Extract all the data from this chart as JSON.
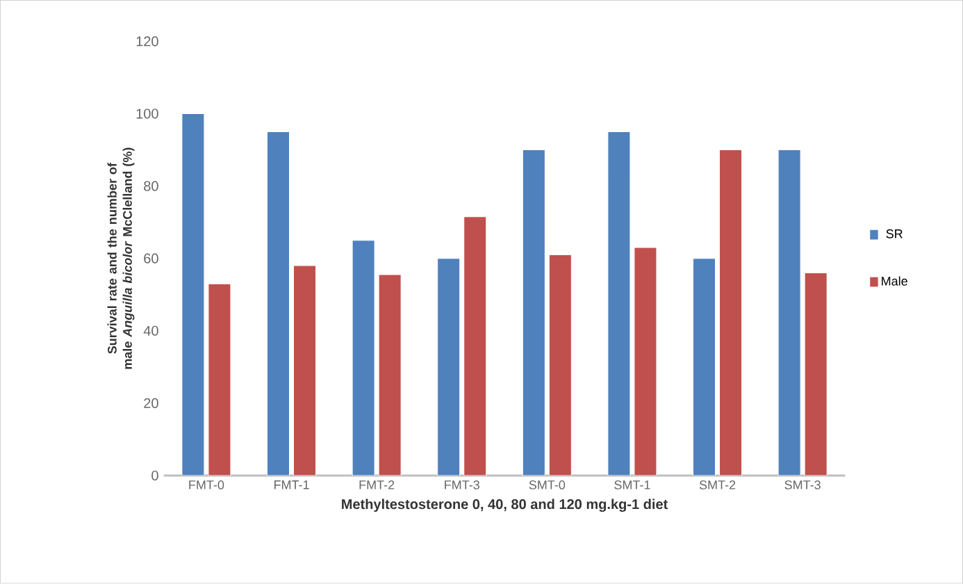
{
  "chart_data": {
    "type": "bar",
    "xlabel": "Methyltestosterone 0, 40, 80 and 120 mg.kg-1 diet",
    "ylabel": "Survival rate and the number of male *Anguilla  bicolor* McClelland  (%)",
    "categories": [
      "FMT-0",
      "FMT-1",
      "FMT-2",
      "FMT-3",
      "SMT-0",
      "SMT-1",
      "SMT-2",
      "SMT-3"
    ],
    "series": [
      {
        "name": "SR",
        "color": "#4f81bd",
        "values": [
          100,
          95,
          65,
          60,
          90,
          95,
          60,
          90
        ]
      },
      {
        "name": "Male",
        "color": "#c0504d",
        "values": [
          53,
          58,
          55.5,
          71.5,
          61,
          63,
          90,
          56
        ]
      }
    ],
    "ylim": [
      0,
      120
    ],
    "yticks": [
      0,
      20,
      40,
      60,
      80,
      100,
      120
    ],
    "grid": false,
    "legend": "right"
  }
}
